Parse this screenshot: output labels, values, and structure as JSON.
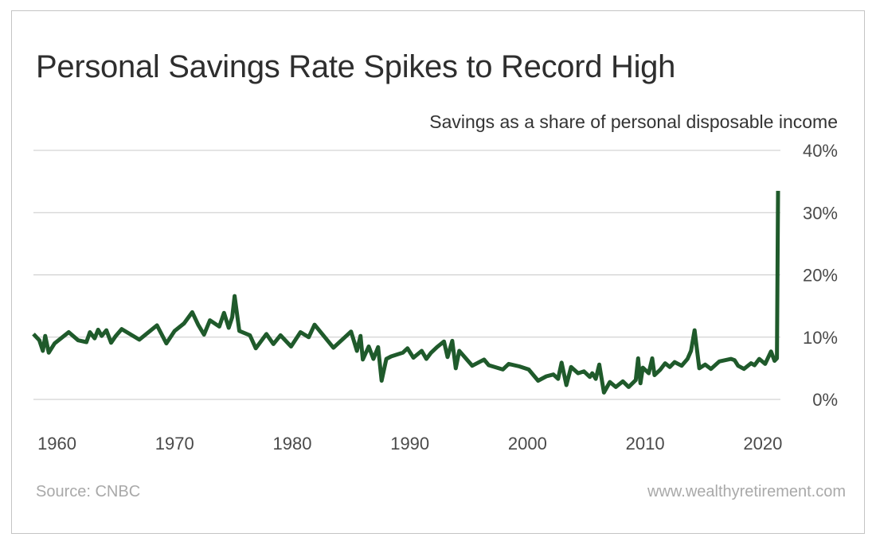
{
  "chart_data": {
    "type": "line",
    "title": "Personal Savings Rate Spikes to Record High",
    "subtitle": "Savings as a share of personal disposable income",
    "xlabel": "",
    "ylabel": "Savings as a share of personal disposable income",
    "xlim": [
      1958,
      2021.5
    ],
    "ylim": [
      0,
      40
    ],
    "x_ticks": [
      1960,
      1970,
      1980,
      1990,
      2000,
      2010,
      2020
    ],
    "x_tick_labels": [
      "1960",
      "1970",
      "1980",
      "1990",
      "2000",
      "2010",
      "2020"
    ],
    "y_ticks": [
      0,
      10,
      20,
      30,
      40
    ],
    "y_tick_labels": [
      "0%",
      "10%",
      "20%",
      "30%",
      "40%"
    ],
    "grid": true,
    "series": [
      {
        "name": "Personal savings rate",
        "color": "#1f5a2b",
        "x": [
          1958.0,
          1958.5,
          1958.8,
          1959.0,
          1959.3,
          1959.8,
          1961.0,
          1961.8,
          1962.5,
          1962.8,
          1963.2,
          1963.5,
          1963.8,
          1964.2,
          1964.6,
          1965.0,
          1965.5,
          1967.0,
          1968.5,
          1969.3,
          1970.0,
          1970.8,
          1971.5,
          1972.0,
          1972.5,
          1973.0,
          1973.8,
          1974.2,
          1974.6,
          1974.9,
          1975.1,
          1975.5,
          1976.4,
          1976.9,
          1977.8,
          1978.4,
          1979.0,
          1979.9,
          1980.7,
          1981.4,
          1981.9,
          1983.5,
          1985.0,
          1985.5,
          1985.8,
          1986.0,
          1986.5,
          1986.9,
          1987.3,
          1987.6,
          1988.0,
          1988.4,
          1989.4,
          1989.8,
          1990.3,
          1991.0,
          1991.4,
          1991.8,
          1992.3,
          1992.9,
          1993.2,
          1993.6,
          1993.9,
          1994.2,
          1995.3,
          1996.3,
          1996.7,
          1997.9,
          1998.4,
          1999.3,
          2000.1,
          2000.9,
          2001.6,
          2002.2,
          2002.6,
          2002.9,
          2003.3,
          2003.7,
          2004.3,
          2004.8,
          2005.3,
          2005.5,
          2005.8,
          2006.1,
          2006.5,
          2007.0,
          2007.5,
          2008.1,
          2008.6,
          2009.2,
          2009.4,
          2009.6,
          2009.8,
          2010.3,
          2010.6,
          2010.8,
          2011.3,
          2011.7,
          2012.1,
          2012.5,
          2013.1,
          2013.6,
          2013.9,
          2014.2,
          2014.6,
          2015.1,
          2015.6,
          2016.3,
          2017.3,
          2017.6,
          2017.9,
          2018.4,
          2019.0,
          2019.3,
          2019.7,
          2020.2,
          2020.7,
          2021.0,
          2021.2
        ],
        "values": [
          10.5,
          9.5,
          7.8,
          10.2,
          7.5,
          9.0,
          10.8,
          9.5,
          9.2,
          10.8,
          9.8,
          11.2,
          10.2,
          11.1,
          9.1,
          10.2,
          11.3,
          9.6,
          11.9,
          9.0,
          11.0,
          12.2,
          14.0,
          12.0,
          10.4,
          12.7,
          11.7,
          13.9,
          11.5,
          13.2,
          16.6,
          11.0,
          10.3,
          8.2,
          10.5,
          8.9,
          10.3,
          8.5,
          10.8,
          10.0,
          12.0,
          8.3,
          10.9,
          7.8,
          10.2,
          6.4,
          8.5,
          6.5,
          8.4,
          3.0,
          6.5,
          6.9,
          7.5,
          8.2,
          6.7,
          7.8,
          6.5,
          7.5,
          8.4,
          9.3,
          6.8,
          9.4,
          5.0,
          7.8,
          5.4,
          6.4,
          5.5,
          4.8,
          5.7,
          5.3,
          4.8,
          3.0,
          3.7,
          4.0,
          3.3,
          5.9,
          2.3,
          5.2,
          4.2,
          4.5,
          3.6,
          4.2,
          3.3,
          5.6,
          1.1,
          2.8,
          2.0,
          2.9,
          2.0,
          3.1,
          6.6,
          2.6,
          5.1,
          4.2,
          6.6,
          3.9,
          4.8,
          5.8,
          5.2,
          6.0,
          5.4,
          6.5,
          7.8,
          11.1,
          5.0,
          5.6,
          4.9,
          6.1,
          6.5,
          6.3,
          5.4,
          4.9,
          5.8,
          5.5,
          6.5,
          5.7,
          7.7,
          6.2,
          6.6
        ]
      }
    ],
    "annotations": [],
    "line_tip": {
      "x": 2021.3,
      "value": 33.5
    }
  },
  "footer": {
    "source": "Source: CNBC",
    "website": "www.wealthyretirement.com"
  }
}
